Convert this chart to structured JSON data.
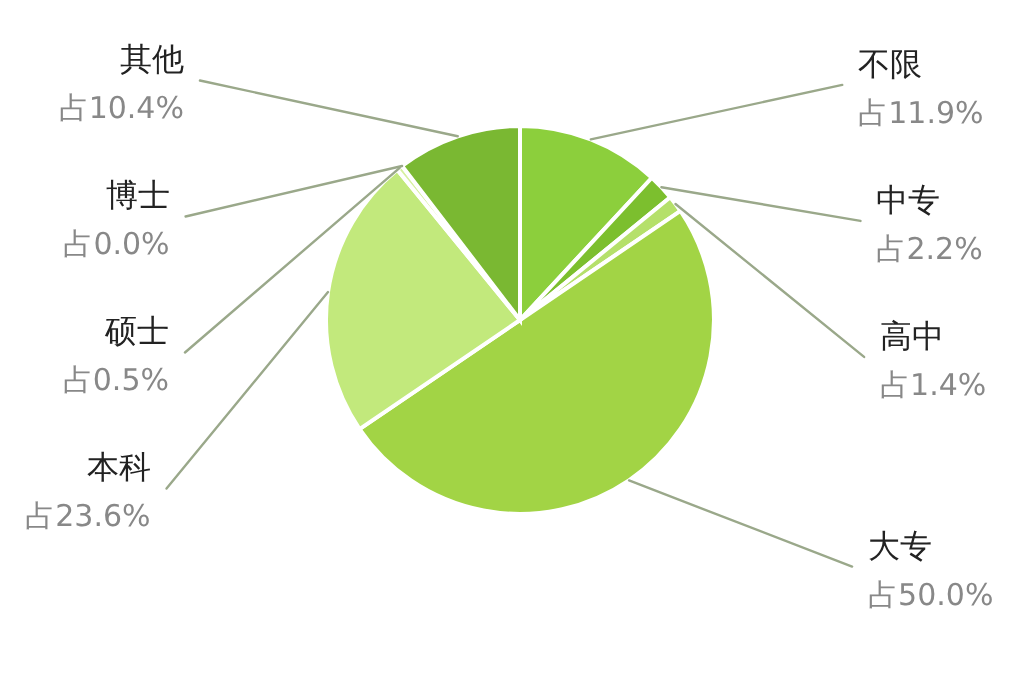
{
  "chart_data": {
    "type": "pie",
    "categories": [
      "不限",
      "中专",
      "高中",
      "大专",
      "本科",
      "硕士",
      "博士",
      "其他"
    ],
    "values": [
      11.9,
      2.2,
      1.4,
      50.0,
      23.6,
      0.5,
      0.0,
      10.4
    ],
    "value_labels": [
      "占11.9%",
      "占2.2%",
      "占1.4%",
      "占50.0%",
      "占23.6%",
      "占0.5%",
      "占0.0%",
      "占10.4%"
    ],
    "colors": [
      "#8ccf3c",
      "#7cbf2e",
      "#b5e06a",
      "#a2d445",
      "#c2e97c",
      "#d6f0a0",
      "#e0f5b0",
      "#7ab832"
    ]
  }
}
